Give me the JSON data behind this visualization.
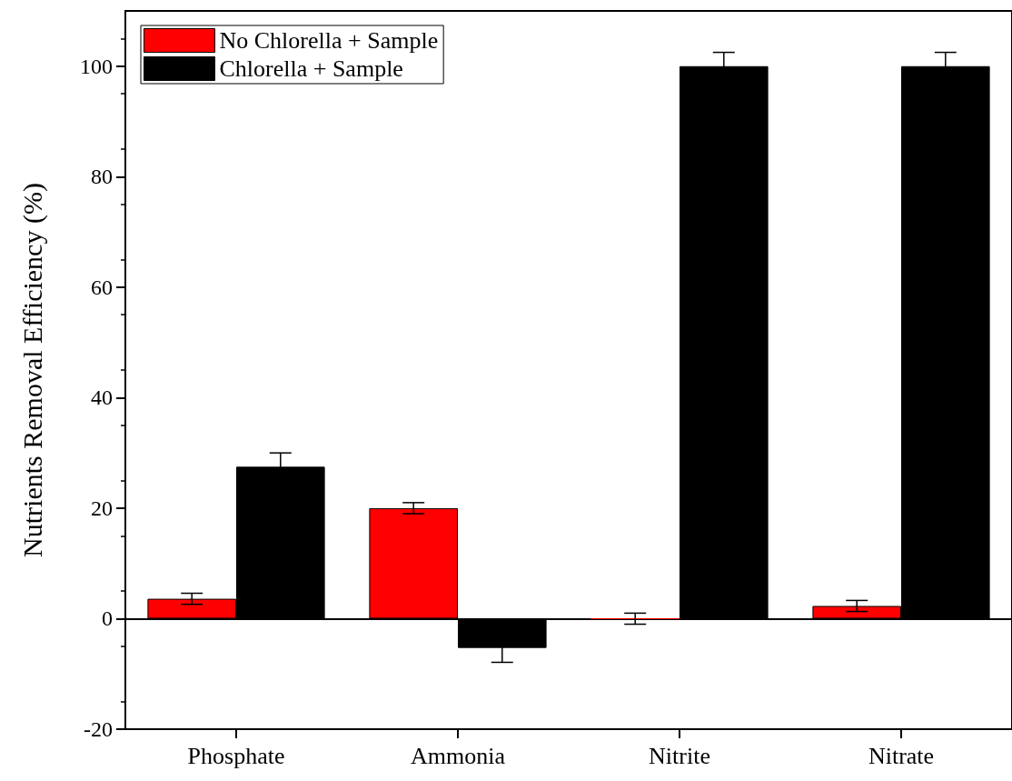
{
  "chart_data": {
    "type": "bar",
    "ylabel": "Nutrients Removal Efficiency (%)",
    "categories": [
      "Phosphate",
      "Ammonia",
      "Nitrite",
      "Nitrate"
    ],
    "series": [
      {
        "name": "No Chlorella + Sample",
        "color": "#ff0000",
        "values": [
          3.6,
          20,
          0,
          2.3
        ],
        "errors": [
          1,
          1,
          1,
          1
        ]
      },
      {
        "name": "Chlorella + Sample",
        "color": "#000000",
        "values": [
          27.5,
          -5.3,
          100,
          100
        ],
        "errors": [
          2.5,
          2.6,
          2.5,
          2.5
        ]
      }
    ],
    "ylim": [
      -20,
      110
    ],
    "yticks": [
      -20,
      0,
      20,
      40,
      60,
      80,
      100
    ],
    "ref_lines": [
      {
        "axis": "y",
        "value": 0,
        "color": "#000000"
      }
    ],
    "legend": "top left",
    "grid": false
  }
}
